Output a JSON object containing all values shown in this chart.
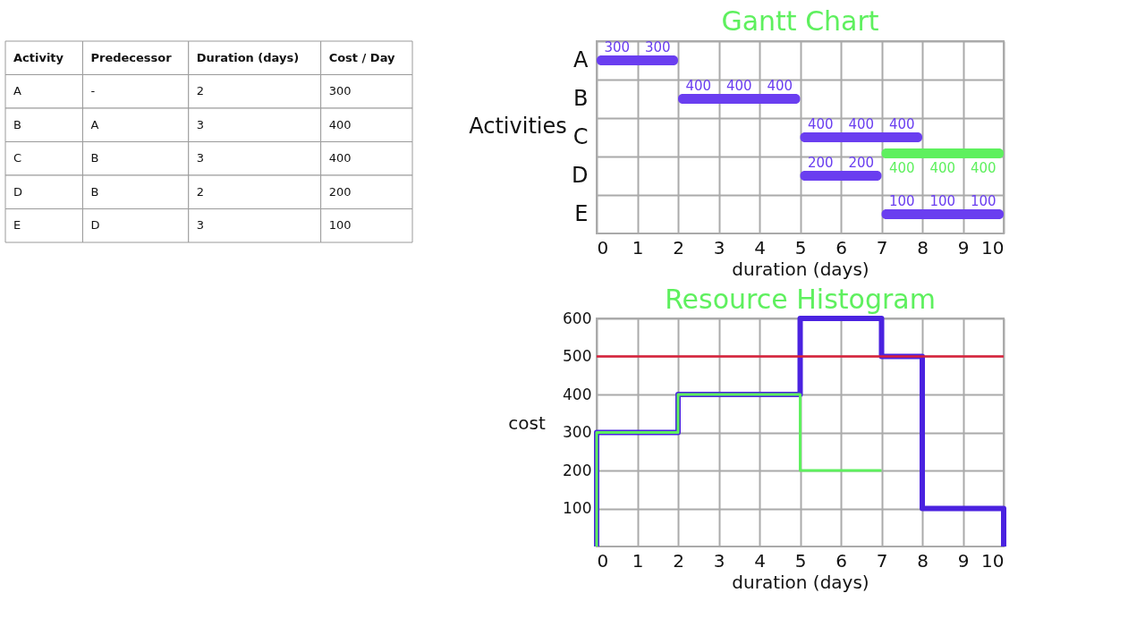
{
  "chart_data": [
    {
      "type": "other",
      "categories": [
        "Activity",
        "Predecessor",
        "Duration (days)",
        "Cost / Day"
      ],
      "cell_labels": [
        [
          "A",
          "-",
          "2",
          "300"
        ],
        [
          "B",
          "A",
          "3",
          "400"
        ],
        [
          "C",
          "B",
          "3",
          "400"
        ],
        [
          "D",
          "B",
          "2",
          "200"
        ],
        [
          "E",
          "D",
          "3",
          "100"
        ]
      ]
    },
    {
      "type": "bar",
      "orientation": "horizontal",
      "title": "Gantt Chart",
      "xlabel": "duration (days)",
      "ylabel": "Activities",
      "categories": [
        "A",
        "B",
        "C",
        "D",
        "E"
      ],
      "series": [
        {
          "color": "#6a3ef0",
          "values": [
            2,
            3,
            3,
            2,
            3
          ],
          "base": [
            0,
            2,
            5,
            5,
            7
          ]
        },
        {
          "color": "#5ef05e",
          "values": [
            null,
            null,
            3,
            null,
            null
          ],
          "base": [
            null,
            null,
            7,
            null,
            null
          ]
        }
      ],
      "xlim": [
        0,
        10
      ],
      "xticks": [
        0,
        1,
        2,
        3,
        4,
        5,
        6,
        7,
        8,
        9,
        10
      ],
      "grid": true,
      "annotations": [
        "300",
        "300",
        "400",
        "400",
        "400",
        "400",
        "400",
        "400",
        "200",
        "200",
        "100",
        "100",
        "100",
        "400",
        "400",
        "400"
      ]
    },
    {
      "type": "step",
      "title": "Resource Histogram",
      "xlabel": "duration (days)",
      "ylabel": "cost",
      "series": [
        {
          "color": "#4a22e0",
          "x": [
            0,
            0,
            2,
            5,
            7,
            8,
            10
          ],
          "values": [
            0,
            300,
            400,
            600,
            500,
            100,
            0
          ]
        },
        {
          "color": "#5ef05e",
          "x": [
            0,
            0,
            2,
            5,
            7
          ],
          "values": [
            0,
            300,
            400,
            200,
            200
          ]
        }
      ],
      "xlim": [
        0,
        10
      ],
      "xticks": [
        0,
        1,
        2,
        3,
        4,
        5,
        6,
        7,
        8,
        9,
        10
      ],
      "ylim": [
        0,
        600
      ],
      "yticks": [
        100,
        200,
        300,
        400,
        500,
        600
      ],
      "grid": true,
      "ref_lines": [
        {
          "axis": "y",
          "value": 500,
          "color": "#d8203a"
        }
      ]
    }
  ]
}
